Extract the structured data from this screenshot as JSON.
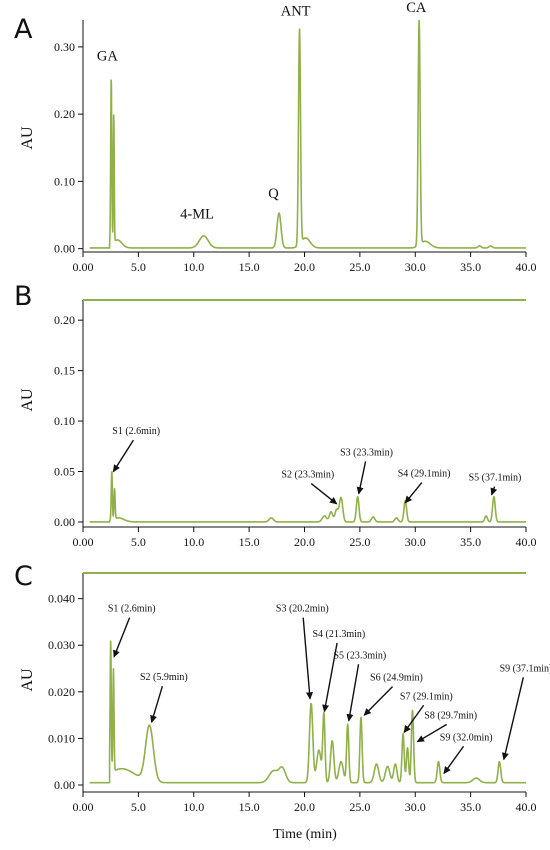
{
  "chart_data": [
    {
      "type": "line",
      "panel_label": "A",
      "ylabel": "AU",
      "xlabel": "",
      "xlim": [
        0,
        40
      ],
      "ylim": [
        -0.005,
        0.34
      ],
      "x_ticks": [
        "0.00",
        "5.0",
        "10.0",
        "15.0",
        "20.0",
        "25.0",
        "30.0",
        "35.0",
        "40.0"
      ],
      "y_ticks": [
        "0.00",
        "0.10",
        "0.20",
        "0.30"
      ],
      "y_tick_values": [
        0,
        0.1,
        0.2,
        0.3
      ],
      "baseline": 0.001,
      "peaks": [
        {
          "x": 2.55,
          "y": 0.249,
          "w": 0.05
        },
        {
          "x": 2.78,
          "y": 0.19,
          "w": 0.04
        },
        {
          "x": 3.1,
          "y": 0.012,
          "w": 0.4
        },
        {
          "x": 10.9,
          "y": 0.018,
          "w": 0.4
        },
        {
          "x": 17.7,
          "y": 0.052,
          "w": 0.18
        },
        {
          "x": 19.55,
          "y": 0.32,
          "w": 0.09
        },
        {
          "x": 20.1,
          "y": 0.015,
          "w": 0.4
        },
        {
          "x": 30.35,
          "y": 0.335,
          "w": 0.09
        },
        {
          "x": 30.9,
          "y": 0.01,
          "w": 0.45
        },
        {
          "x": 35.8,
          "y": 0.003,
          "w": 0.15
        },
        {
          "x": 36.8,
          "y": 0.003,
          "w": 0.15
        }
      ],
      "annotations": [
        {
          "text": "GA",
          "x": 2.2,
          "y": 0.28
        },
        {
          "text": "4-ML",
          "x": 10.3,
          "y": 0.045
        },
        {
          "text": "Q",
          "x": 17.2,
          "y": 0.075
        },
        {
          "text": "ANT",
          "x": 19.2,
          "y": 0.347
        },
        {
          "text": "CA",
          "x": 30.1,
          "y": 0.352
        }
      ]
    },
    {
      "type": "line",
      "panel_label": "B",
      "ylabel": "AU",
      "xlabel": "",
      "xlim": [
        0,
        40
      ],
      "ylim": [
        -0.005,
        0.22
      ],
      "x_ticks": [
        "0.00",
        "5.0",
        "10.0",
        "15.0",
        "20.0",
        "25.0",
        "30.0",
        "35.0",
        "40.0"
      ],
      "y_ticks": [
        "0.00",
        "0.05",
        "0.10",
        "0.15",
        "0.20"
      ],
      "y_tick_values": [
        0,
        0.05,
        0.1,
        0.15,
        0.2
      ],
      "baseline": 0.0,
      "peaks": [
        {
          "x": 2.6,
          "y": 0.049,
          "w": 0.05
        },
        {
          "x": 2.85,
          "y": 0.03,
          "w": 0.05
        },
        {
          "x": 3.2,
          "y": 0.004,
          "w": 0.5
        },
        {
          "x": 17.0,
          "y": 0.004,
          "w": 0.2
        },
        {
          "x": 21.8,
          "y": 0.006,
          "w": 0.2
        },
        {
          "x": 22.4,
          "y": 0.01,
          "w": 0.15
        },
        {
          "x": 22.9,
          "y": 0.012,
          "w": 0.15
        },
        {
          "x": 23.3,
          "y": 0.024,
          "w": 0.15
        },
        {
          "x": 24.8,
          "y": 0.025,
          "w": 0.12
        },
        {
          "x": 26.2,
          "y": 0.005,
          "w": 0.15
        },
        {
          "x": 28.3,
          "y": 0.004,
          "w": 0.15
        },
        {
          "x": 29.1,
          "y": 0.021,
          "w": 0.12
        },
        {
          "x": 36.4,
          "y": 0.006,
          "w": 0.12
        },
        {
          "x": 37.1,
          "y": 0.025,
          "w": 0.12
        }
      ],
      "annotations": [
        {
          "text": "S1 (2.6min)",
          "tx": 4.8,
          "ty": 0.087,
          "ax": 2.75,
          "ay": 0.05
        },
        {
          "text": "S2 (23.3min)",
          "tx": 20.3,
          "ty": 0.044,
          "ax": 22.9,
          "ay": 0.018
        },
        {
          "text": "S3 (23.3min)",
          "tx": 25.6,
          "ty": 0.066,
          "ax": 24.9,
          "ay": 0.028
        },
        {
          "text": "S4 (29.1min)",
          "tx": 30.8,
          "ty": 0.045,
          "ax": 29.1,
          "ay": 0.019
        },
        {
          "text": "S5 (37.1min)",
          "tx": 37.2,
          "ty": 0.041,
          "ax": 36.9,
          "ay": 0.027
        }
      ]
    },
    {
      "type": "line",
      "panel_label": "C",
      "ylabel": "AU",
      "xlabel": "Time (min)",
      "xlim": [
        0,
        40
      ],
      "ylim": [
        -0.0015,
        0.0455
      ],
      "x_ticks": [
        "0.00",
        "5.0",
        "10.0",
        "15.0",
        "20.0",
        "25.0",
        "30.0",
        "35.0",
        "40.0"
      ],
      "y_ticks": [
        "0.00",
        "0.010",
        "0.020",
        "0.030",
        "0.040"
      ],
      "y_tick_values": [
        0,
        0.01,
        0.02,
        0.03,
        0.04
      ],
      "baseline": 0.0005,
      "peaks": [
        {
          "x": 2.5,
          "y": 0.0285,
          "w": 0.05
        },
        {
          "x": 2.75,
          "y": 0.022,
          "w": 0.05
        },
        {
          "x": 3.5,
          "y": 0.003,
          "w": 1.2
        },
        {
          "x": 6.0,
          "y": 0.012,
          "w": 0.35
        },
        {
          "x": 17.2,
          "y": 0.0025,
          "w": 0.4
        },
        {
          "x": 18.0,
          "y": 0.003,
          "w": 0.3
        },
        {
          "x": 20.6,
          "y": 0.017,
          "w": 0.15
        },
        {
          "x": 21.3,
          "y": 0.007,
          "w": 0.2
        },
        {
          "x": 21.75,
          "y": 0.0145,
          "w": 0.1
        },
        {
          "x": 22.5,
          "y": 0.009,
          "w": 0.15
        },
        {
          "x": 23.3,
          "y": 0.0045,
          "w": 0.2
        },
        {
          "x": 23.9,
          "y": 0.0125,
          "w": 0.1
        },
        {
          "x": 25.1,
          "y": 0.014,
          "w": 0.1
        },
        {
          "x": 26.5,
          "y": 0.004,
          "w": 0.2
        },
        {
          "x": 27.5,
          "y": 0.0035,
          "w": 0.2
        },
        {
          "x": 28.2,
          "y": 0.004,
          "w": 0.15
        },
        {
          "x": 28.9,
          "y": 0.0105,
          "w": 0.1
        },
        {
          "x": 29.3,
          "y": 0.0075,
          "w": 0.1
        },
        {
          "x": 29.75,
          "y": 0.0155,
          "w": 0.1
        },
        {
          "x": 32.1,
          "y": 0.0045,
          "w": 0.12
        },
        {
          "x": 35.5,
          "y": 0.001,
          "w": 0.3
        },
        {
          "x": 37.6,
          "y": 0.0045,
          "w": 0.12
        }
      ],
      "annotations": [
        {
          "text": "S1 (2.6min)",
          "tx": 4.4,
          "ty": 0.0372,
          "ax": 2.8,
          "ay": 0.0275
        },
        {
          "text": "S2 (5.9min)",
          "tx": 7.3,
          "ty": 0.0225,
          "ax": 6.2,
          "ay": 0.0135
        },
        {
          "text": "S3 (20.2min)",
          "tx": 19.8,
          "ty": 0.0372,
          "ax": 20.5,
          "ay": 0.0185
        },
        {
          "text": "S4 (21.3min)",
          "tx": 23.1,
          "ty": 0.0318,
          "ax": 21.8,
          "ay": 0.0158
        },
        {
          "text": "S5 (23.3min)",
          "tx": 25.0,
          "ty": 0.0272,
          "ax": 24.0,
          "ay": 0.0138
        },
        {
          "text": "S6 (24.9min)",
          "tx": 28.3,
          "ty": 0.0224,
          "ax": 25.4,
          "ay": 0.015
        },
        {
          "text": "S7 (29.1min)",
          "tx": 31.0,
          "ty": 0.0184,
          "ax": 29.0,
          "ay": 0.0113
        },
        {
          "text": "S8 (29.7min)",
          "tx": 33.2,
          "ty": 0.0143,
          "ax": 30.2,
          "ay": 0.0093
        },
        {
          "text": "S9 (32.0min)",
          "tx": 34.6,
          "ty": 0.0096,
          "ax": 32.6,
          "ay": 0.0025
        },
        {
          "text": "S9 (37.1min)",
          "tx": 40.0,
          "ty": 0.0244,
          "ax": 38.0,
          "ay": 0.0055
        }
      ]
    }
  ]
}
